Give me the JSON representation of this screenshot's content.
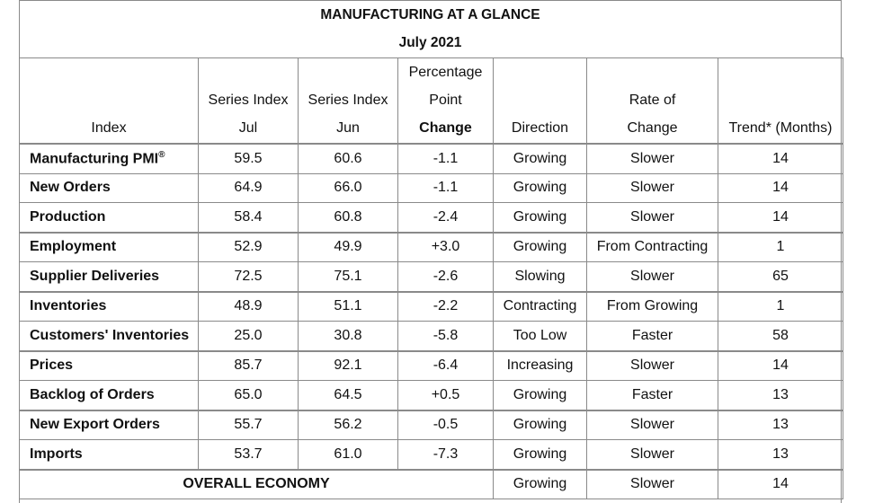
{
  "title": "MANUFACTURING AT A GLANCE",
  "subtitle": "July 2021",
  "headers": {
    "index": "Index",
    "jul": [
      "Series Index",
      "Jul"
    ],
    "jun": [
      "Series Index",
      "Jun"
    ],
    "change": [
      "Percentage",
      "Point",
      "Change"
    ],
    "direction": "Direction",
    "rate": [
      "Rate of",
      "Change"
    ],
    "trend": "Trend* (Months)"
  },
  "rows": [
    {
      "name": "Manufacturing PMI",
      "sup": "®",
      "jul": "59.5",
      "jun": "60.6",
      "change": "-1.1",
      "direction": "Growing",
      "rate": "Slower",
      "trend": "14"
    },
    {
      "name": "New Orders",
      "sup": "",
      "jul": "64.9",
      "jun": "66.0",
      "change": "-1.1",
      "direction": "Growing",
      "rate": "Slower",
      "trend": "14"
    },
    {
      "name": "Production",
      "sup": "",
      "jul": "58.4",
      "jun": "60.8",
      "change": "-2.4",
      "direction": "Growing",
      "rate": "Slower",
      "trend": "14"
    },
    {
      "name": "Employment",
      "sup": "",
      "jul": "52.9",
      "jun": "49.9",
      "change": "+3.0",
      "direction": "Growing",
      "rate": "From Contracting",
      "trend": "1"
    },
    {
      "name": "Supplier Deliveries",
      "sup": "",
      "jul": "72.5",
      "jun": "75.1",
      "change": "-2.6",
      "direction": "Slowing",
      "rate": "Slower",
      "trend": "65"
    },
    {
      "name": "Inventories",
      "sup": "",
      "jul": "48.9",
      "jun": "51.1",
      "change": "-2.2",
      "direction": "Contracting",
      "rate": "From Growing",
      "trend": "1"
    },
    {
      "name": "Customers' Inventories",
      "sup": "",
      "jul": "25.0",
      "jun": "30.8",
      "change": "-5.8",
      "direction": "Too Low",
      "rate": "Faster",
      "trend": "58"
    },
    {
      "name": "Prices",
      "sup": "",
      "jul": "85.7",
      "jun": "92.1",
      "change": "-6.4",
      "direction": "Increasing",
      "rate": "Slower",
      "trend": "14"
    },
    {
      "name": "Backlog of Orders",
      "sup": "",
      "jul": "65.0",
      "jun": "64.5",
      "change": "+0.5",
      "direction": "Growing",
      "rate": "Faster",
      "trend": "13"
    },
    {
      "name": "New Export Orders",
      "sup": "",
      "jul": "55.7",
      "jun": "56.2",
      "change": "-0.5",
      "direction": "Growing",
      "rate": "Slower",
      "trend": "13"
    },
    {
      "name": "Imports",
      "sup": "",
      "jul": "53.7",
      "jun": "61.0",
      "change": "-7.3",
      "direction": "Growing",
      "rate": "Slower",
      "trend": "13"
    }
  ],
  "overall": {
    "label": "OVERALL ECONOMY",
    "direction": "Growing",
    "rate": "Slower",
    "trend": "14"
  }
}
